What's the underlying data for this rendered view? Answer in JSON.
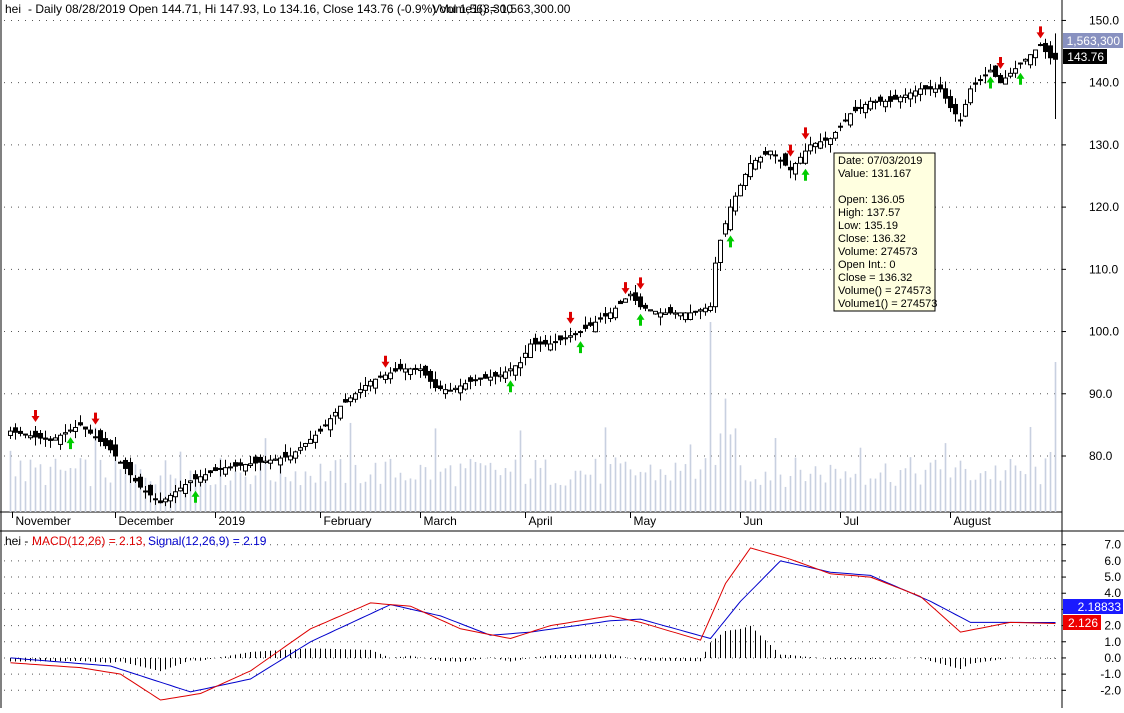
{
  "header": {
    "symbol": "hei",
    "info_line": "- Daily 08/28/2019 Open 144.71, Hi 147.93, Lo 134.16, Close 143.76 (-0.9%) Vol 1,563,300",
    "volume_label": "Volume1() = 1,563,300.00"
  },
  "macd_header": {
    "prefix": "hei -",
    "macd_label": "MACD(12,26) = 2.13,",
    "signal_label": "Signal(12,26,9) = 2.19"
  },
  "colors": {
    "up_arrow": "#00cc00",
    "down_arrow": "#dd0000",
    "macd_line": "#dd0000",
    "signal_line": "#0000cc",
    "volume_bar": "#c8d0e0",
    "signal_badge": "#1a1aff",
    "macd_badge": "#ee0000",
    "tooltip_bg": "#ffffe0"
  },
  "price_badge": "143.76",
  "volume_badge": "1,563,300",
  "macd_badge": "2.126",
  "signal_badge": "2.18833",
  "tooltip": {
    "lines": [
      "Date: 07/03/2019",
      "Value: 131.167",
      "",
      "Open: 136.05",
      "High:  137.57",
      "Low:   135.19",
      "Close: 136.32",
      "Volume: 274573",
      "Open Int.: 0",
      "Close = 136.32",
      "Volume() = 274573",
      "Volume1() = 274573"
    ]
  },
  "chart_data": [
    {
      "type": "candlestick",
      "ylim": [
        71,
        152
      ],
      "yticks": [
        80,
        90,
        100,
        110,
        120,
        130,
        140,
        150
      ],
      "ytick_labels": [
        "80.0",
        "90.0",
        "100.0",
        "110.0",
        "120.0",
        "130.0",
        "140.0",
        "150.0"
      ],
      "month_labels": [
        "November",
        "December",
        "2019",
        "February",
        "March",
        "April",
        "May",
        "Jun",
        "Jul",
        "August"
      ],
      "anchors": [
        {
          "bar": 0,
          "close": 84
        },
        {
          "bar": 8,
          "close": 82.5
        },
        {
          "bar": 14,
          "close": 85
        },
        {
          "bar": 20,
          "close": 81
        },
        {
          "bar": 26,
          "close": 75
        },
        {
          "bar": 30,
          "close": 72.5
        },
        {
          "bar": 36,
          "close": 76
        },
        {
          "bar": 42,
          "close": 78
        },
        {
          "bar": 50,
          "close": 79
        },
        {
          "bar": 56,
          "close": 80
        },
        {
          "bar": 62,
          "close": 84
        },
        {
          "bar": 66,
          "close": 88
        },
        {
          "bar": 72,
          "close": 92
        },
        {
          "bar": 78,
          "close": 94
        },
        {
          "bar": 82,
          "close": 94
        },
        {
          "bar": 85,
          "close": 91
        },
        {
          "bar": 88,
          "close": 90.5
        },
        {
          "bar": 92,
          "close": 92
        },
        {
          "bar": 98,
          "close": 93
        },
        {
          "bar": 102,
          "close": 95
        },
        {
          "bar": 104,
          "close": 98
        },
        {
          "bar": 108,
          "close": 98
        },
        {
          "bar": 114,
          "close": 100
        },
        {
          "bar": 120,
          "close": 103
        },
        {
          "bar": 124,
          "close": 106
        },
        {
          "bar": 126,
          "close": 104
        },
        {
          "bar": 130,
          "close": 103
        },
        {
          "bar": 136,
          "close": 103
        },
        {
          "bar": 140,
          "close": 104
        },
        {
          "bar": 141,
          "close": 112
        },
        {
          "bar": 144,
          "close": 120
        },
        {
          "bar": 148,
          "close": 127
        },
        {
          "bar": 152,
          "close": 129
        },
        {
          "bar": 156,
          "close": 126
        },
        {
          "bar": 158,
          "close": 128
        },
        {
          "bar": 160,
          "close": 130
        },
        {
          "bar": 164,
          "close": 131
        },
        {
          "bar": 168,
          "close": 135
        },
        {
          "bar": 172,
          "close": 137
        },
        {
          "bar": 176,
          "close": 137
        },
        {
          "bar": 182,
          "close": 139
        },
        {
          "bar": 186,
          "close": 139
        },
        {
          "bar": 188,
          "close": 136
        },
        {
          "bar": 190,
          "close": 134
        },
        {
          "bar": 192,
          "close": 139
        },
        {
          "bar": 196,
          "close": 142
        },
        {
          "bar": 198,
          "close": 140
        },
        {
          "bar": 202,
          "close": 143
        },
        {
          "bar": 206,
          "close": 146
        },
        {
          "bar": 208,
          "close": 144
        },
        {
          "bar": 209,
          "close": 143.76
        }
      ],
      "up_arrow_bars": [
        12,
        37,
        100,
        114,
        126,
        144,
        159,
        196,
        202
      ],
      "down_arrow_bars": [
        5,
        17,
        75,
        112,
        123,
        126,
        156,
        159,
        198,
        206
      ]
    },
    {
      "type": "line",
      "ylim": [
        -2.6,
        7.6
      ],
      "yticks": [
        -2,
        -1,
        0,
        1,
        2,
        3,
        4,
        5,
        6,
        7
      ],
      "ytick_labels": [
        "-2.0",
        "-1.0",
        "0.0",
        "1.0",
        "2.0",
        "3.0",
        "4.0",
        "5.0",
        "6.0",
        "7.0"
      ],
      "series": [
        {
          "name": "MACD(12,26)",
          "anchors": [
            {
              "bar": 0,
              "value": -0.3
            },
            {
              "bar": 14,
              "value": -0.6
            },
            {
              "bar": 22,
              "value": -1.0
            },
            {
              "bar": 30,
              "value": -2.6
            },
            {
              "bar": 38,
              "value": -2.2
            },
            {
              "bar": 48,
              "value": -0.8
            },
            {
              "bar": 60,
              "value": 1.8
            },
            {
              "bar": 72,
              "value": 3.4
            },
            {
              "bar": 80,
              "value": 3.2
            },
            {
              "bar": 90,
              "value": 1.8
            },
            {
              "bar": 100,
              "value": 1.2
            },
            {
              "bar": 108,
              "value": 2.0
            },
            {
              "bar": 120,
              "value": 2.6
            },
            {
              "bar": 126,
              "value": 2.2
            },
            {
              "bar": 138,
              "value": 1.1
            },
            {
              "bar": 143,
              "value": 4.6
            },
            {
              "bar": 148,
              "value": 6.8
            },
            {
              "bar": 156,
              "value": 6.1
            },
            {
              "bar": 164,
              "value": 5.2
            },
            {
              "bar": 172,
              "value": 5.0
            },
            {
              "bar": 182,
              "value": 3.8
            },
            {
              "bar": 190,
              "value": 1.6
            },
            {
              "bar": 200,
              "value": 2.2
            },
            {
              "bar": 209,
              "value": 2.13
            }
          ]
        },
        {
          "name": "Signal(12,26,9)",
          "anchors": [
            {
              "bar": 0,
              "value": 0.0
            },
            {
              "bar": 20,
              "value": -0.5
            },
            {
              "bar": 36,
              "value": -2.1
            },
            {
              "bar": 48,
              "value": -1.3
            },
            {
              "bar": 60,
              "value": 1.0
            },
            {
              "bar": 76,
              "value": 3.3
            },
            {
              "bar": 86,
              "value": 2.6
            },
            {
              "bar": 96,
              "value": 1.4
            },
            {
              "bar": 104,
              "value": 1.6
            },
            {
              "bar": 120,
              "value": 2.3
            },
            {
              "bar": 126,
              "value": 2.4
            },
            {
              "bar": 140,
              "value": 1.2
            },
            {
              "bar": 146,
              "value": 3.5
            },
            {
              "bar": 154,
              "value": 6.0
            },
            {
              "bar": 164,
              "value": 5.3
            },
            {
              "bar": 172,
              "value": 5.1
            },
            {
              "bar": 184,
              "value": 3.5
            },
            {
              "bar": 192,
              "value": 2.2
            },
            {
              "bar": 209,
              "value": 2.19
            }
          ]
        }
      ]
    }
  ]
}
